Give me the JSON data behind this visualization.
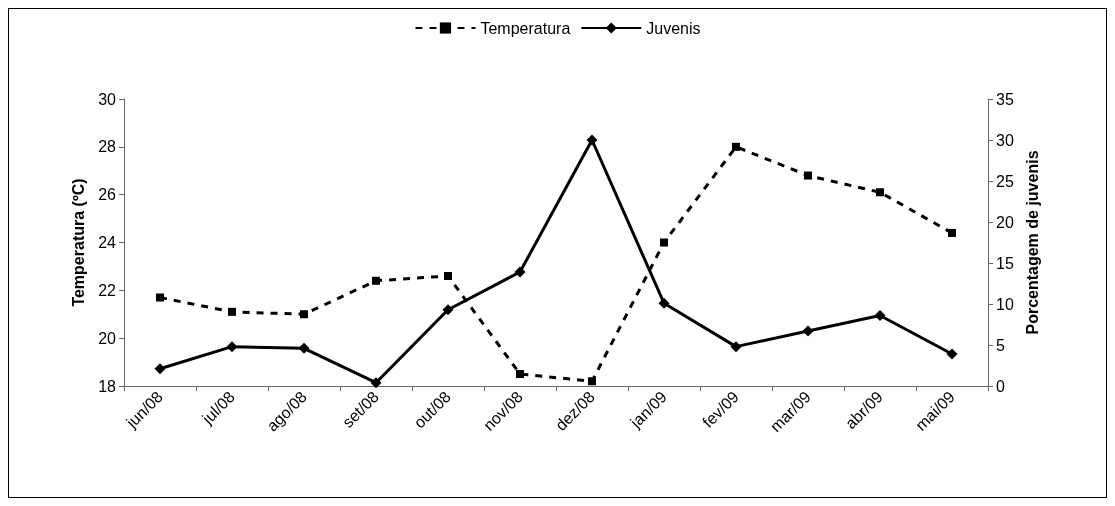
{
  "chart_data": {
    "type": "line",
    "ylabel": "Temperatura (ºC)",
    "y2label": "Porcentagem de juvenis",
    "categories": [
      "jun/08",
      "jul/08",
      "ago/08",
      "set/08",
      "out/08",
      "nov/08",
      "dez/08",
      "jan/09",
      "fev/09",
      "mar/09",
      "abr/09",
      "mai/09"
    ],
    "series": [
      {
        "name": "Temperatura",
        "color": "#000000",
        "marker": "square",
        "line_style": "dashed",
        "values": [
          21.7,
          21.1,
          21.0,
          22.4,
          22.6,
          18.5,
          18.2,
          24.0,
          28.0,
          26.8,
          26.1,
          24.4
        ]
      },
      {
        "name": "Juvenis",
        "color": "#000000",
        "marker": "diamond",
        "line_style": "solid",
        "axis": "y2",
        "values": [
          2.1,
          4.8,
          4.6,
          0.4,
          9.3,
          13.9,
          30.0,
          10.1,
          4.8,
          6.7,
          8.6,
          3.9
        ]
      }
    ],
    "ylim": [
      18,
      30
    ],
    "yticks": [
      18,
      20,
      22,
      24,
      26,
      28,
      30
    ],
    "y2lim": [
      0,
      35
    ],
    "y2ticks": [
      0,
      5,
      10,
      15,
      20,
      25,
      30,
      35
    ],
    "grid": false,
    "legend": "top"
  }
}
